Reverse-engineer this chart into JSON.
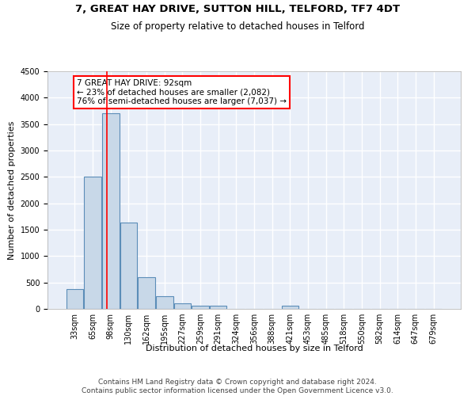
{
  "title1": "7, GREAT HAY DRIVE, SUTTON HILL, TELFORD, TF7 4DT",
  "title2": "Size of property relative to detached houses in Telford",
  "xlabel": "Distribution of detached houses by size in Telford",
  "ylabel": "Number of detached properties",
  "bar_color": "#c8d8e8",
  "bar_edge_color": "#5b8db8",
  "background_color": "#e8eef8",
  "grid_color": "#ffffff",
  "categories": [
    "33sqm",
    "65sqm",
    "98sqm",
    "130sqm",
    "162sqm",
    "195sqm",
    "227sqm",
    "259sqm",
    "291sqm",
    "324sqm",
    "356sqm",
    "388sqm",
    "421sqm",
    "453sqm",
    "485sqm",
    "518sqm",
    "550sqm",
    "582sqm",
    "614sqm",
    "647sqm",
    "679sqm"
  ],
  "values": [
    370,
    2500,
    3700,
    1630,
    600,
    240,
    100,
    55,
    55,
    0,
    0,
    0,
    55,
    0,
    0,
    0,
    0,
    0,
    0,
    0,
    0
  ],
  "ylim": [
    0,
    4500
  ],
  "yticks": [
    0,
    500,
    1000,
    1500,
    2000,
    2500,
    3000,
    3500,
    4000,
    4500
  ],
  "red_line_x": 1.78,
  "annotation_text": "7 GREAT HAY DRIVE: 92sqm\n← 23% of detached houses are smaller (2,082)\n76% of semi-detached houses are larger (7,037) →",
  "footer_text": "Contains HM Land Registry data © Crown copyright and database right 2024.\nContains public sector information licensed under the Open Government Licence v3.0.",
  "title1_fontsize": 9.5,
  "title2_fontsize": 8.5,
  "xlabel_fontsize": 8,
  "ylabel_fontsize": 8,
  "tick_fontsize": 7,
  "annotation_fontsize": 7.5,
  "footer_fontsize": 6.5
}
